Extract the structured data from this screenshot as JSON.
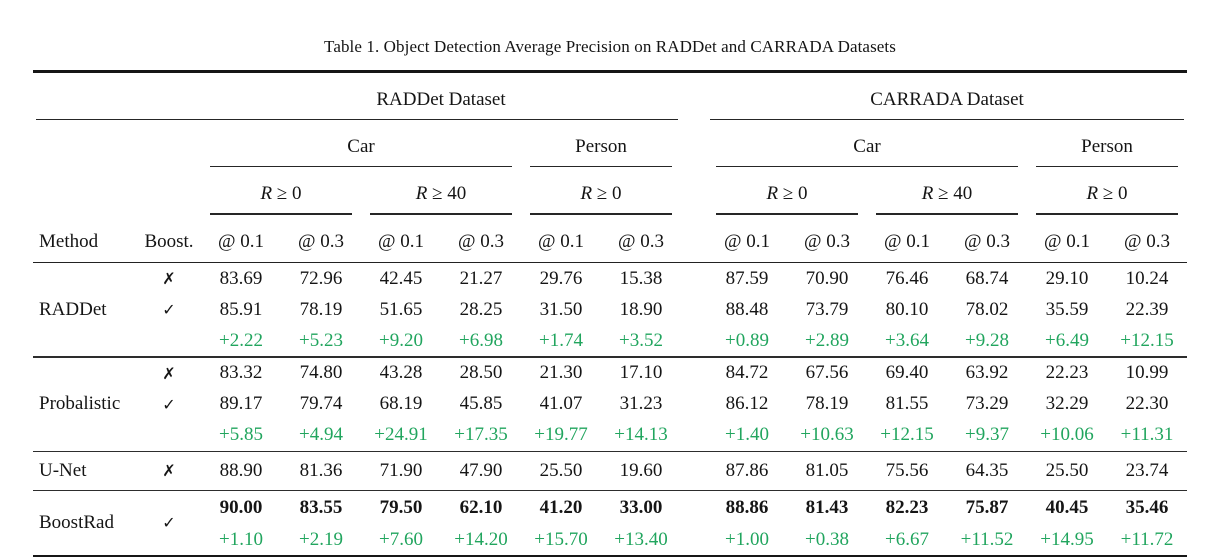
{
  "page": {
    "caption": "Table 1. Object Detection Average Precision on RADDet and CARRADA Datasets"
  },
  "colors": {
    "delta_green": "#21a55e",
    "rule_black": "#1c1c1c"
  },
  "header": {
    "method_label": "Method",
    "boost_label": "Boost.",
    "datasets": [
      "RADDet Dataset",
      "CARRADA Dataset"
    ],
    "class_car": "Car",
    "class_person": "Person",
    "r_symbol": "R",
    "r0_rest": "≥ 0",
    "r40_rest": "≥ 40",
    "at_01": "@ 0.1",
    "at_03": "@ 0.3"
  },
  "marks": {
    "no": "✗",
    "yes": "✓"
  },
  "body": {
    "groups": [
      {
        "method": "RADDet",
        "no": [
          "83.69",
          "72.96",
          "42.45",
          "21.27",
          "29.76",
          "15.38",
          "87.59",
          "70.90",
          "76.46",
          "68.74",
          "29.10",
          "10.24"
        ],
        "yes": [
          "85.91",
          "78.19",
          "51.65",
          "28.25",
          "31.50",
          "18.90",
          "88.48",
          "73.79",
          "80.10",
          "78.02",
          "35.59",
          "22.39"
        ],
        "delta": [
          "+2.22",
          "+5.23",
          "+9.20",
          "+6.98",
          "+1.74",
          "+3.52",
          "+0.89",
          "+2.89",
          "+3.64",
          "+9.28",
          "+6.49",
          "+12.15"
        ]
      },
      {
        "method": "Probalistic",
        "no": [
          "83.32",
          "74.80",
          "43.28",
          "28.50",
          "21.30",
          "17.10",
          "84.72",
          "67.56",
          "69.40",
          "63.92",
          "22.23",
          "10.99"
        ],
        "yes": [
          "89.17",
          "79.74",
          "68.19",
          "45.85",
          "41.07",
          "31.23",
          "86.12",
          "78.19",
          "81.55",
          "73.29",
          "32.29",
          "22.30"
        ],
        "delta": [
          "+5.85",
          "+4.94",
          "+24.91",
          "+17.35",
          "+19.77",
          "+14.13",
          "+1.40",
          "+10.63",
          "+12.15",
          "+9.37",
          "+10.06",
          "+11.31"
        ]
      },
      {
        "method": "U-Net",
        "no": [
          "88.90",
          "81.36",
          "71.90",
          "47.90",
          "25.50",
          "19.60",
          "87.86",
          "81.05",
          "75.56",
          "64.35",
          "25.50",
          "23.74"
        ]
      },
      {
        "method": "BoostRad",
        "best": [
          "90.00",
          "83.55",
          "79.50",
          "62.10",
          "41.20",
          "33.00",
          "88.86",
          "81.43",
          "82.23",
          "75.87",
          "40.45",
          "35.46"
        ],
        "delta": [
          "+1.10",
          "+2.19",
          "+7.60",
          "+14.20",
          "+15.70",
          "+13.40",
          "+1.00",
          "+0.38",
          "+6.67",
          "+11.52",
          "+14.95",
          "+11.72"
        ]
      }
    ]
  }
}
